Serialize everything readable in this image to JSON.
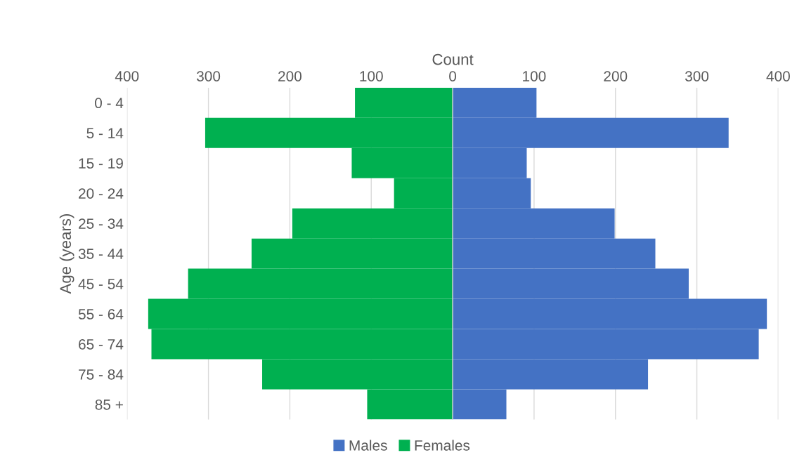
{
  "chart_data": {
    "type": "bar",
    "orientation": "horizontal",
    "xlabel": "Count",
    "ylabel": "Age (years)",
    "categories": [
      "0 - 4",
      "5 - 14",
      "15 - 19",
      "20 - 24",
      "25 - 34",
      "35 - 44",
      "45 - 54",
      "55 - 64",
      "65 - 74",
      "75 - 84",
      "85 +"
    ],
    "series": [
      {
        "name": "Males",
        "color": "#4472c4",
        "values": [
          103,
          339,
          91,
          96,
          199,
          249,
          290,
          386,
          376,
          240,
          66
        ]
      },
      {
        "name": "Females",
        "color": "#00b050",
        "values": [
          -120,
          -304,
          -124,
          -72,
          -197,
          -247,
          -325,
          -374,
          -370,
          -234,
          -105
        ]
      }
    ],
    "xlim": [
      -400,
      400
    ],
    "xticks": [
      {
        "value": -400,
        "label": "400"
      },
      {
        "value": -300,
        "label": "300"
      },
      {
        "value": -200,
        "label": "200"
      },
      {
        "value": -100,
        "label": "100"
      },
      0,
      100,
      200,
      300,
      400
    ],
    "stacked": true,
    "grid": "x",
    "legend": "bottom"
  }
}
